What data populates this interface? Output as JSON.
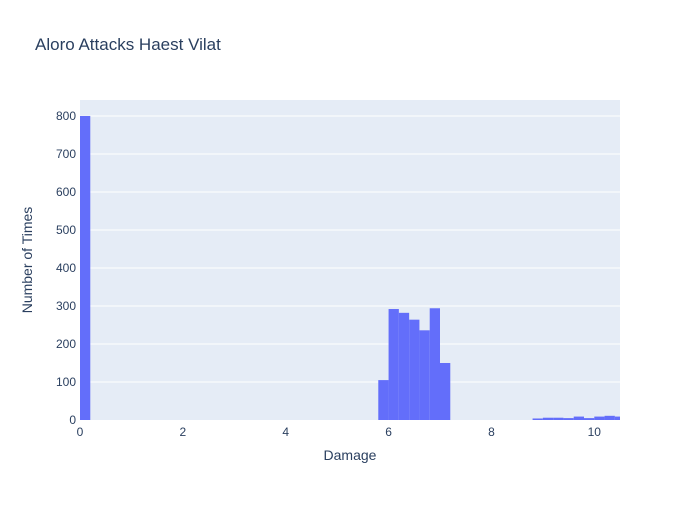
{
  "chart_data": {
    "type": "bar",
    "title": "Aloro Attacks Haest Vilat",
    "xlabel": "Damage",
    "ylabel": "Number of Times",
    "xlim": [
      0,
      10.5
    ],
    "ylim": [
      0,
      842
    ],
    "x_ticks": [
      0,
      2,
      4,
      6,
      8,
      10
    ],
    "y_ticks": [
      0,
      100,
      200,
      300,
      400,
      500,
      600,
      700,
      800
    ],
    "grid": true,
    "bin_width": 0.2,
    "colors": {
      "bar": "#636efa",
      "plot_bg": "#e5ecf6",
      "grid": "#ffffff",
      "text": "#2a3f5f"
    },
    "bins": [
      {
        "x0": 0.0,
        "value": 800
      },
      {
        "x0": 5.8,
        "value": 105
      },
      {
        "x0": 6.0,
        "value": 292
      },
      {
        "x0": 6.2,
        "value": 282
      },
      {
        "x0": 6.4,
        "value": 264
      },
      {
        "x0": 6.6,
        "value": 236
      },
      {
        "x0": 6.8,
        "value": 294
      },
      {
        "x0": 7.0,
        "value": 150
      },
      {
        "x0": 8.8,
        "value": 4
      },
      {
        "x0": 9.0,
        "value": 6
      },
      {
        "x0": 9.2,
        "value": 6
      },
      {
        "x0": 9.4,
        "value": 5
      },
      {
        "x0": 9.6,
        "value": 9
      },
      {
        "x0": 9.8,
        "value": 5
      },
      {
        "x0": 10.0,
        "value": 9
      },
      {
        "x0": 10.2,
        "value": 11
      },
      {
        "x0": 10.4,
        "value": 9
      }
    ]
  }
}
